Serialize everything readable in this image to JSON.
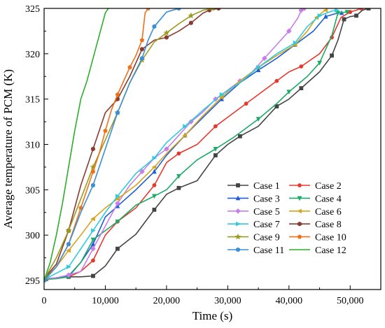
{
  "chart_data": {
    "type": "line",
    "xlabel": "Time (s)",
    "ylabel": "Average temperature of PCM (K)",
    "xlim": [
      0,
      55000
    ],
    "ylim": [
      294,
      325
    ],
    "xticks": [
      0,
      10000,
      20000,
      30000,
      40000,
      50000
    ],
    "xtick_labels": [
      "0",
      "10,000",
      "20,000",
      "30,000",
      "40,000",
      "50,000"
    ],
    "yticks": [
      295,
      300,
      305,
      310,
      315,
      320,
      325
    ],
    "ytick_labels": [
      "295",
      "300",
      "305",
      "310",
      "315",
      "320",
      "325"
    ],
    "grid": false,
    "legend_position": "bottom-right",
    "series": [
      {
        "name": "Case 1",
        "color": "#444444",
        "marker": "square",
        "x": [
          0,
          2000,
          4000,
          6000,
          8000,
          10000,
          12000,
          15000,
          18000,
          20000,
          22000,
          25000,
          28000,
          30000,
          32000,
          35000,
          38000,
          40000,
          42000,
          45000,
          47000,
          48000,
          49000,
          50000,
          51000,
          52000,
          53000
        ],
        "y": [
          295.1,
          295.3,
          295.4,
          295.4,
          295.5,
          296.6,
          298.5,
          300.1,
          302.8,
          304.5,
          305.2,
          306.0,
          308.8,
          310.0,
          310.9,
          312.0,
          314.2,
          315.0,
          316.2,
          318.0,
          319.8,
          321.5,
          323.8,
          324.1,
          324.2,
          324.8,
          325.0
        ]
      },
      {
        "name": "Case 2",
        "color": "#e8382e",
        "marker": "circle",
        "x": [
          0,
          2000,
          4000,
          6000,
          8000,
          10000,
          12000,
          15000,
          18000,
          20000,
          22000,
          25000,
          28000,
          30000,
          33000,
          36000,
          38000,
          40000,
          42000,
          45000,
          47000,
          48500,
          50000,
          51000,
          51800
        ],
        "y": [
          295.1,
          295.3,
          295.4,
          296.0,
          297.2,
          300.0,
          301.5,
          303.0,
          305.5,
          308.0,
          309.0,
          310.0,
          312.0,
          313.0,
          314.5,
          316.0,
          317.0,
          318.0,
          318.6,
          320.0,
          321.8,
          324.0,
          324.6,
          324.8,
          325.0
        ]
      },
      {
        "name": "Case 3",
        "color": "#1f5fd6",
        "marker": "triangle-up",
        "x": [
          0,
          2000,
          4000,
          6000,
          8000,
          10000,
          12000,
          15000,
          18000,
          20000,
          23000,
          26000,
          29000,
          32000,
          35000,
          38000,
          41000,
          44000,
          46000,
          48000,
          48600
        ],
        "y": [
          295.1,
          295.3,
          295.5,
          297.0,
          299.0,
          302.0,
          303.2,
          305.0,
          307.0,
          308.8,
          311.0,
          313.0,
          315.0,
          316.8,
          318.2,
          319.5,
          321.0,
          322.5,
          324.1,
          324.5,
          324.5
        ]
      },
      {
        "name": "Case 4",
        "color": "#1aab66",
        "marker": "triangle-down",
        "x": [
          0,
          2000,
          4000,
          6000,
          8000,
          10000,
          12000,
          15000,
          18000,
          20000,
          22000,
          25000,
          28000,
          31000,
          35000,
          38000,
          40000,
          43000,
          45000,
          47000,
          48000,
          49500
        ],
        "y": [
          295.1,
          295.2,
          295.4,
          297.0,
          299.5,
          300.5,
          301.5,
          303.3,
          304.3,
          305.0,
          306.5,
          308.3,
          309.5,
          310.8,
          312.8,
          314.5,
          315.8,
          317.5,
          319.0,
          322.0,
          324.5,
          324.6
        ]
      },
      {
        "name": "Case 5",
        "color": "#c77ee8",
        "marker": "diamond",
        "x": [
          0,
          2000,
          4000,
          6000,
          8000,
          10000,
          12000,
          14000,
          16000,
          18000,
          20000,
          22000,
          24000,
          26000,
          28000,
          30000,
          32000,
          34000,
          36000,
          38000,
          40000,
          41500,
          42000,
          42500
        ],
        "y": [
          295.2,
          295.3,
          295.6,
          296.0,
          298.5,
          301.0,
          303.5,
          305.5,
          307.0,
          308.5,
          309.5,
          311.0,
          312.5,
          313.6,
          315.0,
          316.0,
          317.0,
          318.0,
          319.5,
          321.0,
          322.5,
          324.0,
          324.8,
          325.0
        ]
      },
      {
        "name": "Case 6",
        "color": "#d6a31f",
        "marker": "triangle-left",
        "x": [
          0,
          2000,
          4000,
          6000,
          8000,
          10000,
          12000,
          15000,
          18000,
          20000,
          23000,
          26000,
          29000,
          32000,
          35000,
          38000,
          41000,
          43000,
          44500,
          45500,
          46000
        ],
        "y": [
          295.2,
          296.5,
          298.3,
          300.0,
          301.8,
          303.0,
          304.0,
          305.5,
          307.5,
          309.0,
          311.0,
          313.2,
          315.2,
          317.0,
          318.5,
          319.8,
          321.0,
          322.5,
          324.0,
          324.6,
          324.8
        ]
      },
      {
        "name": "Case 7",
        "color": "#2ecbe0",
        "marker": "triangle-right",
        "x": [
          0,
          2000,
          4000,
          6000,
          8000,
          10000,
          12000,
          15000,
          18000,
          20000,
          23000,
          26000,
          29000,
          32000,
          35000,
          38000,
          41000,
          43000,
          45000,
          47000,
          47800
        ],
        "y": [
          295.1,
          295.8,
          296.5,
          298.5,
          300.5,
          302.5,
          304.3,
          306.8,
          308.5,
          310.2,
          312.0,
          313.8,
          315.5,
          316.8,
          318.5,
          320.0,
          321.2,
          323.0,
          324.2,
          324.7,
          324.8
        ]
      },
      {
        "name": "Case 8",
        "color": "#8a3a2e",
        "marker": "hexagon",
        "x": [
          0,
          2000,
          4000,
          6000,
          8000,
          10000,
          12000,
          14000,
          16000,
          18000,
          20000,
          22000,
          24000,
          26000,
          27000,
          28500
        ],
        "y": [
          295.2,
          296.8,
          300.5,
          305.5,
          309.5,
          313.5,
          315.0,
          317.5,
          320.5,
          321.5,
          321.8,
          322.5,
          323.4,
          324.5,
          324.8,
          325.0
        ]
      },
      {
        "name": "Case 9",
        "color": "#9a9c1e",
        "marker": "star",
        "x": [
          0,
          2000,
          4000,
          6000,
          8000,
          10000,
          12000,
          14000,
          16000,
          18000,
          20000,
          22000,
          24000,
          26000,
          27500
        ],
        "y": [
          295.1,
          297.5,
          300.5,
          304.0,
          307.5,
          310.5,
          313.5,
          316.8,
          319.3,
          321.3,
          322.3,
          323.3,
          324.2,
          324.8,
          325.0
        ]
      },
      {
        "name": "Case 10",
        "color": "#f07018",
        "marker": "pentagon",
        "x": [
          0,
          2000,
          4000,
          5000,
          6000,
          7000,
          8000,
          9000,
          10000,
          11000,
          12000,
          13000,
          14000,
          15000,
          16000,
          16500,
          17000
        ],
        "y": [
          295.0,
          296.5,
          299.0,
          301.0,
          303.0,
          305.0,
          307.0,
          309.0,
          311.5,
          313.8,
          315.5,
          317.0,
          318.5,
          319.8,
          321.5,
          324.5,
          325.0
        ]
      },
      {
        "name": "Case 11",
        "color": "#3a8fd6",
        "marker": "hexagon",
        "x": [
          0,
          2000,
          4000,
          6000,
          8000,
          10000,
          12000,
          14000,
          16000,
          17000,
          18000,
          20000,
          22000
        ],
        "y": [
          295.0,
          296.5,
          299.0,
          302.5,
          305.5,
          309.5,
          313.5,
          316.8,
          319.5,
          321.5,
          323.0,
          324.6,
          325.0
        ]
      },
      {
        "name": "Case 12",
        "color": "#2ab02a",
        "marker": "none",
        "x": [
          0,
          1000,
          2000,
          3000,
          4000,
          5000,
          6000,
          7000,
          8000,
          9000,
          10000,
          10500
        ],
        "y": [
          295.0,
          297.0,
          300.0,
          303.5,
          307.5,
          311.5,
          315.0,
          317.0,
          319.5,
          322.0,
          324.5,
          325.0
        ]
      }
    ]
  }
}
